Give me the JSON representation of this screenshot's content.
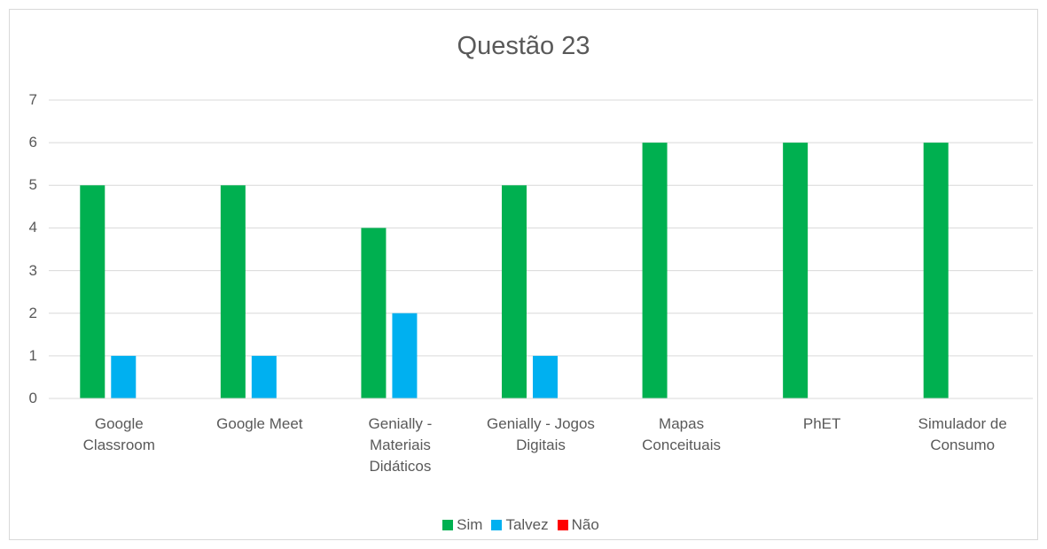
{
  "chart_data": {
    "type": "bar",
    "title": "Questão 23",
    "categories": [
      "Google Classroom",
      "Google Meet",
      "Genially - Materiais Didáticos",
      "Genially - Jogos Digitais",
      "Mapas Conceituais",
      "PhET",
      "Simulador de Consumo"
    ],
    "series": [
      {
        "name": "Sim",
        "color": "#00b050",
        "values": [
          5,
          5,
          4,
          5,
          6,
          6,
          6
        ]
      },
      {
        "name": "Talvez",
        "color": "#00b0f0",
        "values": [
          1,
          1,
          2,
          1,
          0,
          0,
          0
        ]
      },
      {
        "name": "Não",
        "color": "#ff0000",
        "values": [
          0,
          0,
          0,
          0,
          0,
          0,
          0
        ]
      }
    ],
    "ylim": [
      0,
      7
    ],
    "yticks": [
      0,
      1,
      2,
      3,
      4,
      5,
      6,
      7
    ],
    "grid": true,
    "legend": "bottom"
  }
}
